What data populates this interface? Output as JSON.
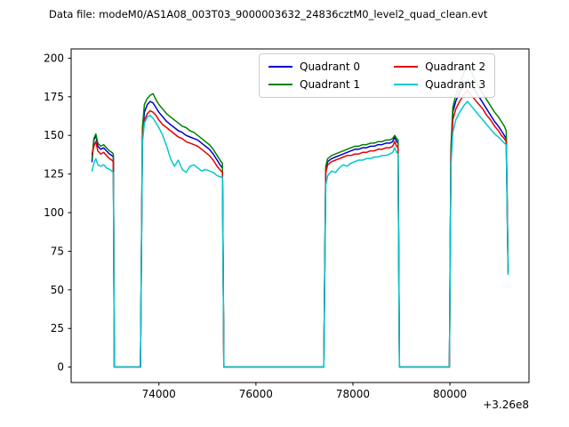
{
  "chart_data": {
    "type": "line",
    "title": "Data file: modeM0/AS1A08_003T03_9000003632_24836cztM0_level2_quad_clean.evt",
    "xlabel": "",
    "ylabel": "",
    "x_offset_label": "+3.26e8",
    "xlim": [
      72190,
      81630
    ],
    "ylim": [
      -10,
      206
    ],
    "xticks": [
      74000,
      76000,
      78000,
      80000
    ],
    "yticks": [
      0,
      25,
      50,
      75,
      100,
      125,
      150,
      175,
      200
    ],
    "grid": false,
    "legend_position": "upper center",
    "x": [
      72620,
      72660,
      72700,
      72740,
      72800,
      72860,
      72920,
      72980,
      73030,
      73060,
      73080,
      73620,
      73660,
      73700,
      73760,
      73820,
      73880,
      73940,
      74000,
      74080,
      74160,
      74240,
      74320,
      74400,
      74480,
      74560,
      74640,
      74720,
      74800,
      74880,
      74960,
      75040,
      75120,
      75200,
      75280,
      75310,
      75340,
      77400,
      77440,
      77480,
      77560,
      77640,
      77720,
      77800,
      77880,
      77960,
      78040,
      78120,
      78200,
      78280,
      78360,
      78440,
      78520,
      78600,
      78680,
      78760,
      78820,
      78860,
      78900,
      78930,
      78960,
      79990,
      80020,
      80060,
      80120,
      80200,
      80280,
      80360,
      80440,
      80520,
      80600,
      80680,
      80760,
      80840,
      80920,
      81000,
      81060,
      81120,
      81160,
      81200
    ],
    "series": [
      {
        "name": "Quadrant 0",
        "color": "#0000cd",
        "y": [
          133,
          147,
          150,
          143,
          141,
          142,
          140,
          138,
          137,
          136,
          0,
          0,
          150,
          165,
          170,
          172,
          171,
          168,
          165,
          162,
          159,
          157,
          155,
          153,
          152,
          150,
          149,
          148,
          147,
          145,
          143,
          141,
          138,
          134,
          130,
          129,
          0,
          0,
          128,
          133,
          135,
          136,
          137,
          138,
          139,
          140,
          141,
          141,
          142,
          142,
          143,
          143,
          144,
          144,
          145,
          145,
          146,
          149,
          146,
          145,
          0,
          0,
          140,
          165,
          172,
          178,
          183,
          186,
          183,
          179,
          175,
          171,
          167,
          163,
          159,
          156,
          153,
          150,
          148,
          62
        ]
      },
      {
        "name": "Quadrant 1",
        "color": "#008000",
        "y": [
          135,
          148,
          151,
          145,
          143,
          144,
          142,
          140,
          139,
          138,
          0,
          0,
          155,
          170,
          174,
          176,
          177,
          173,
          170,
          167,
          164,
          162,
          160,
          158,
          156,
          155,
          153,
          152,
          150,
          148,
          146,
          144,
          141,
          137,
          133,
          132,
          0,
          0,
          130,
          135,
          137,
          138,
          139,
          140,
          141,
          142,
          143,
          143,
          144,
          144,
          145,
          145,
          146,
          146,
          147,
          147,
          148,
          150,
          148,
          147,
          0,
          0,
          142,
          168,
          176,
          183,
          190,
          196,
          191,
          186,
          181,
          177,
          173,
          169,
          165,
          162,
          159,
          156,
          153,
          64
        ]
      },
      {
        "name": "Quadrant 2",
        "color": "#e60000",
        "y": [
          138,
          143,
          146,
          140,
          138,
          139,
          137,
          135,
          134,
          133,
          0,
          0,
          148,
          160,
          164,
          166,
          165,
          163,
          160,
          157,
          155,
          153,
          151,
          149,
          148,
          146,
          145,
          144,
          143,
          141,
          139,
          137,
          134,
          130,
          127,
          126,
          0,
          0,
          126,
          131,
          133,
          134,
          135,
          136,
          137,
          137,
          138,
          138,
          139,
          139,
          140,
          140,
          141,
          141,
          142,
          142,
          143,
          146,
          143,
          142,
          0,
          0,
          136,
          160,
          167,
          172,
          176,
          179,
          176,
          173,
          170,
          167,
          163,
          160,
          156,
          153,
          150,
          148,
          146,
          61
        ]
      },
      {
        "name": "Quadrant 3",
        "color": "#00c8d0",
        "y": [
          127,
          132,
          135,
          131,
          130,
          131,
          129,
          128,
          127,
          126,
          0,
          0,
          145,
          158,
          162,
          163,
          161,
          158,
          155,
          150,
          143,
          135,
          130,
          134,
          128,
          126,
          130,
          131,
          129,
          127,
          128,
          127,
          126,
          124,
          123,
          123,
          0,
          0,
          118,
          124,
          127,
          126,
          129,
          131,
          130,
          132,
          133,
          134,
          134,
          135,
          135,
          136,
          136,
          137,
          137,
          138,
          139,
          142,
          139,
          138,
          0,
          0,
          130,
          152,
          160,
          165,
          169,
          172,
          169,
          166,
          163,
          160,
          157,
          154,
          151,
          149,
          147,
          145,
          144,
          60
        ]
      }
    ]
  }
}
